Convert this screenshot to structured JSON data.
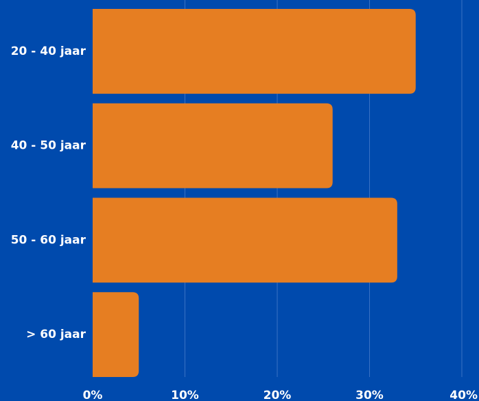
{
  "chart_data": {
    "type": "bar",
    "orientation": "horizontal",
    "categories": [
      "20 - 40 jaar",
      "40 - 50 jaar",
      "50 - 60 jaar",
      "> 60 jaar"
    ],
    "values": [
      35,
      26,
      33,
      5
    ],
    "unit": "%",
    "xlim": [
      0,
      40
    ],
    "xticks": [
      "0%",
      "10%",
      "20%",
      "30%",
      "40%"
    ],
    "grid": true,
    "title": "",
    "xlabel": "",
    "ylabel": "",
    "colors": {
      "background": "#004aad",
      "bar": "#e67e22",
      "grid": "#3a72c4",
      "text": "#ffffff"
    }
  }
}
